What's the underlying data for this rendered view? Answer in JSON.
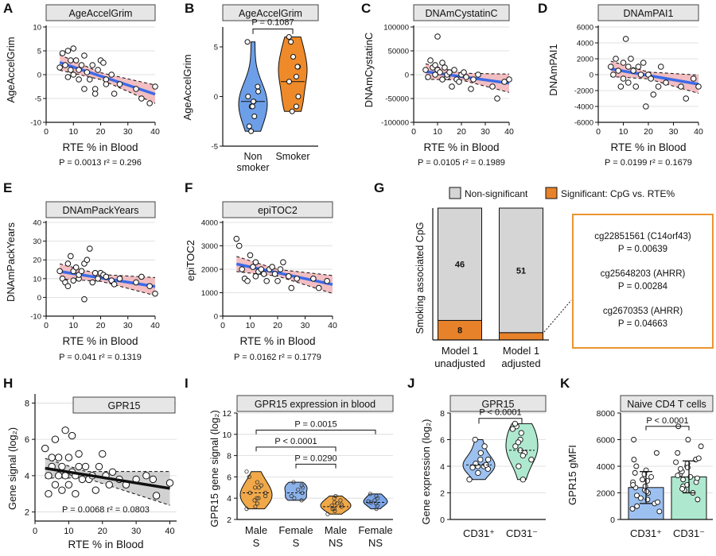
{
  "panels": [
    {
      "letter": "A",
      "title": "AgeAccelGrim",
      "ylabel": "AgeAccelGrim",
      "xlabel": "RTE % in Blood",
      "yticks": [
        "10",
        "5",
        "0",
        "-5",
        "-10"
      ],
      "xticks": [
        "0",
        "10",
        "20",
        "30",
        "40"
      ],
      "stat_p": "P = 0.0013",
      "stat_r": "r² = 0.296"
    },
    {
      "letter": "B",
      "title": "AgeAccelGrim",
      "ylabel": "AgeAccelGrim",
      "yticks": [
        "5",
        "0",
        "-5"
      ],
      "xticks": [
        "Non",
        "Smoker"
      ],
      "xticks2": [
        "smoker",
        ""
      ],
      "stat_p": "P = 0.1087"
    },
    {
      "letter": "C",
      "title": "DNAmCystatinC",
      "ylabel": "DNAmCystatinC",
      "xlabel": "RTE % in Blood",
      "yticks": [
        "100000",
        "50000",
        "0",
        "-50000",
        "-100000"
      ],
      "xticks": [
        "0",
        "10",
        "20",
        "30",
        "40"
      ],
      "stat_p": "P = 0.0105",
      "stat_r": "r² = 0.1989"
    },
    {
      "letter": "D",
      "title": "DNAmPAI1",
      "ylabel": "DNAmPAI1",
      "xlabel": "RTE % in Blood",
      "yticks": [
        "6000",
        "4000",
        "2000",
        "0",
        "-2000",
        "-4000",
        "-6000"
      ],
      "xticks": [
        "0",
        "10",
        "20",
        "30",
        "40"
      ],
      "stat_p": "P = 0.0199",
      "stat_r": "r² = 0.1679"
    },
    {
      "letter": "E",
      "title": "DNAmPackYears",
      "ylabel": "DNAmPackYears",
      "xlabel": "RTE % in Blood",
      "yticks": [
        "40",
        "30",
        "20",
        "10",
        "0",
        "-10"
      ],
      "xticks": [
        "0",
        "10",
        "20",
        "30",
        "40"
      ],
      "stat_p": "P = 0.041",
      "stat_r": "r² = 0.1319"
    },
    {
      "letter": "F",
      "title": "epiTOC2",
      "ylabel": "epiTOC2",
      "xlabel": "RTE % in Blood",
      "yticks": [
        "4000",
        "3000",
        "2000",
        "1000",
        "0"
      ],
      "xticks": [
        "0",
        "10",
        "20",
        "30",
        "40"
      ],
      "stat_p": "P = 0.0162",
      "stat_r": "r² = 0.1779"
    },
    {
      "letter": "G",
      "ylabel": "Smoking associated CpG",
      "legend_ns": "Non-significant",
      "legend_sig": "Significant: CpG vs. RTE%",
      "xticks": [
        "Model 1",
        "Model 1"
      ],
      "xticks2": [
        "unadjusted",
        "adjusted"
      ],
      "box_lines": [
        "cg22851561 (C14orf43)",
        "P = 0.00639",
        "cg25648203 (AHRR)",
        "P = 0.00284",
        "cg2670353 (AHRR)",
        "P = 0.04663"
      ]
    },
    {
      "letter": "H",
      "title": "GPR15",
      "ylabel": "Gene signal (log₂)",
      "xlabel": "RTE % in Blood",
      "yticks": [
        "8",
        "6",
        "4",
        "2"
      ],
      "xticks": [
        "0",
        "10",
        "20",
        "30",
        "40"
      ],
      "stat": "P = 0.0068    r² = 0.0803"
    },
    {
      "letter": "I",
      "title": "GPR15 expression in blood",
      "ylabel": "GPR15 gene signal (log₂)",
      "yticks": [
        "12",
        "10",
        "8",
        "6",
        "4",
        "2"
      ],
      "xticks": [
        "Male",
        "Female",
        "Male",
        "Female"
      ],
      "xticks2": [
        "S",
        "S",
        "NS",
        "NS"
      ],
      "stats": [
        "P = 0.0015",
        "P < 0.0001",
        "P = 0.0290"
      ]
    },
    {
      "letter": "J",
      "title": "GPR15",
      "ylabel": "Gene expression (log₂)",
      "yticks": [
        "8",
        "6",
        "4",
        "2",
        "0"
      ],
      "xticks": [
        "CD31⁺",
        "CD31⁻"
      ],
      "stat": "P < 0.0001"
    },
    {
      "letter": "K",
      "title": "Naive CD4 T cells",
      "ylabel": "GPR15 gMFI",
      "yticks": [
        "8000",
        "6000",
        "4000",
        "2000",
        "0"
      ],
      "xticks": [
        "CD31⁺",
        "CD31⁻"
      ],
      "stat": "P < 0.0001"
    }
  ],
  "colors": {
    "regression": "#3c6be8",
    "ci_fill": "#f1b3b7",
    "nonsmoker": "#6d9fe8",
    "smoker": "#ee8a2a",
    "orange": "#e8822a",
    "grey": "#d5d5d5",
    "box_border": "#e9962f",
    "male_s": "#f0a849",
    "female_s": "#8bb2ea",
    "male_ns": "#f0a849",
    "female_ns": "#7aa5e6",
    "cd31pos": "#9cc0f0",
    "cd31neg": "#aee9cf",
    "title_bg": "#e6e6e6"
  },
  "chart_data": [
    {
      "panel": "A",
      "type": "scatter",
      "xlim": [
        0,
        40
      ],
      "ylim": [
        -10,
        10
      ],
      "x": [
        5,
        6,
        7,
        8,
        8,
        9,
        9,
        10,
        10,
        11,
        12,
        12,
        13,
        14,
        14,
        15,
        16,
        17,
        18,
        18,
        19,
        20,
        21,
        22,
        22,
        24,
        25,
        27,
        33,
        35,
        38,
        40
      ],
      "y": [
        1.5,
        4.5,
        2,
        5,
        -0.5,
        3,
        1,
        5.5,
        0,
        3,
        1,
        -1,
        2,
        4,
        -3,
        0.5,
        -1,
        2,
        -3,
        -4,
        1,
        3,
        2.5,
        -1,
        -2,
        0,
        -4,
        -2,
        -3,
        -5,
        -6,
        -2.5
      ],
      "fit": {
        "slope": -0.19,
        "intercept": 3.5
      }
    },
    {
      "panel": "B",
      "type": "violin",
      "categories": [
        "Non smoker",
        "Smoker"
      ],
      "series": [
        {
          "values": [
            5.5,
            1,
            0,
            -0.5,
            -1,
            -1,
            -2,
            -3,
            -3.5,
            -0.5,
            0.5
          ]
        },
        {
          "values": [
            6,
            5.5,
            4,
            3,
            2,
            1.5,
            0,
            -1,
            -1.5,
            3
          ]
        }
      ],
      "medians": [
        -0.5,
        1.5
      ],
      "ylim": [
        -5,
        7
      ]
    },
    {
      "panel": "C",
      "type": "scatter",
      "xlim": [
        0,
        40
      ],
      "ylim": [
        -100000,
        100000
      ],
      "x": [
        5,
        6,
        7,
        8,
        9,
        9,
        10,
        10,
        11,
        12,
        12,
        13,
        14,
        14,
        15,
        16,
        17,
        18,
        19,
        20,
        21,
        22,
        24,
        25,
        27,
        33,
        35,
        38,
        40
      ],
      "y": [
        10000,
        -5000,
        30000,
        15000,
        20000,
        0,
        80000,
        10000,
        5000,
        -10000,
        25000,
        15000,
        -5000,
        0,
        5000,
        -25000,
        10000,
        -10000,
        -15000,
        0,
        5000,
        -5000,
        -30000,
        -10000,
        0,
        -25000,
        -50000,
        -15000,
        -10000
      ],
      "fit": {
        "slope": -700,
        "intercept": 10000
      }
    },
    {
      "panel": "D",
      "type": "scatter",
      "xlim": [
        0,
        40
      ],
      "ylim": [
        -6000,
        6000
      ],
      "x": [
        5,
        6,
        7,
        8,
        9,
        10,
        10,
        11,
        12,
        12,
        13,
        14,
        15,
        16,
        17,
        18,
        19,
        20,
        21,
        22,
        24,
        25,
        27,
        33,
        35,
        38,
        40
      ],
      "y": [
        1000,
        0,
        2000,
        500,
        -1500,
        1500,
        -500,
        4500,
        1000,
        -1000,
        2000,
        500,
        -1500,
        1000,
        0,
        1500,
        -4000,
        0,
        -500,
        -2500,
        -1500,
        1000,
        -1000,
        -1500,
        -3000,
        -500,
        -1500
      ],
      "fit": {
        "slope": -55,
        "intercept": 1000
      }
    },
    {
      "panel": "E",
      "type": "scatter",
      "xlim": [
        0,
        40
      ],
      "ylim": [
        -10,
        40
      ],
      "x": [
        5,
        6,
        7,
        8,
        8,
        9,
        10,
        10,
        11,
        12,
        12,
        13,
        14,
        14,
        15,
        16,
        17,
        18,
        19,
        20,
        21,
        22,
        24,
        25,
        27,
        33,
        35,
        38,
        40
      ],
      "y": [
        14,
        10,
        8,
        18,
        6,
        22,
        14,
        9,
        16,
        10,
        12,
        14,
        18,
        -1,
        20,
        26,
        8,
        13,
        10,
        13,
        12,
        11,
        9,
        7,
        10,
        8,
        11,
        6,
        2
      ],
      "fit": {
        "slope": -0.23,
        "intercept": 15
      }
    },
    {
      "panel": "F",
      "type": "scatter",
      "xlim": [
        0,
        40
      ],
      "ylim": [
        0,
        4000
      ],
      "x": [
        5,
        6,
        7,
        8,
        9,
        10,
        11,
        12,
        12,
        13,
        14,
        15,
        16,
        17,
        18,
        19,
        20,
        21,
        22,
        24,
        25,
        27,
        33,
        35,
        38
      ],
      "y": [
        3300,
        3000,
        2000,
        1600,
        1500,
        2600,
        2100,
        2300,
        1700,
        1900,
        2000,
        1800,
        1500,
        2000,
        2100,
        1800,
        1500,
        2000,
        2300,
        1700,
        1200,
        1600,
        1600,
        1200,
        1500
      ],
      "fit": {
        "slope": -25,
        "intercept": 2350
      }
    },
    {
      "panel": "G",
      "type": "bar",
      "categories": [
        "Model 1 unadjusted",
        "Model 1 adjusted"
      ],
      "series": [
        {
          "name": "Significant: CpG vs. RTE%",
          "values": [
            8,
            3
          ]
        },
        {
          "name": "Non-significant",
          "values": [
            46,
            51
          ]
        }
      ],
      "labels_ns": [
        "46",
        "51"
      ],
      "labels_sig": [
        "8",
        ""
      ]
    },
    {
      "panel": "H",
      "type": "scatter",
      "xlim": [
        0,
        40
      ],
      "ylim": [
        2,
        8
      ],
      "x": [
        3,
        4,
        4,
        5,
        5,
        6,
        6,
        7,
        7,
        8,
        8,
        9,
        9,
        10,
        10,
        11,
        11,
        12,
        12,
        13,
        13,
        14,
        15,
        16,
        17,
        18,
        19,
        20,
        21,
        22,
        23,
        25,
        27,
        30,
        33,
        35,
        36,
        40
      ],
      "y": [
        5.5,
        4,
        3,
        5,
        4.5,
        6,
        3.5,
        4,
        5,
        4.5,
        3.2,
        6.5,
        4,
        5,
        3.5,
        4.2,
        6.2,
        4,
        3,
        5.2,
        4.5,
        3.8,
        4.5,
        3.8,
        4,
        3.2,
        4.5,
        5.2,
        4,
        3.5,
        4.2,
        3.8,
        3.5,
        3.8,
        4,
        3.8,
        2.9,
        3.6
      ],
      "fit": {
        "slope": -0.03,
        "intercept": 4.5
      }
    },
    {
      "panel": "I",
      "type": "violin",
      "categories": [
        "Male S",
        "Female S",
        "Male NS",
        "Female NS"
      ],
      "series": [
        {
          "values": [
            3,
            3.5,
            4,
            4,
            4.5,
            5,
            5,
            5.5,
            6,
            6.5,
            4.5,
            3.8,
            4.2,
            5.2,
            3.2
          ]
        },
        {
          "values": [
            3.8,
            4,
            4.2,
            4.5,
            5,
            5.2,
            5.5,
            4.8
          ]
        },
        {
          "values": [
            2.5,
            2.8,
            3,
            3.2,
            3.4,
            3.6,
            3.8,
            4,
            4.2,
            3,
            3.3,
            3.5
          ]
        },
        {
          "values": [
            3,
            3.3,
            3.5,
            3.6,
            3.8,
            4,
            4.2,
            4.4,
            3.7
          ]
        }
      ],
      "medians": [
        4.5,
        4.5,
        3.2,
        3.6
      ],
      "ylim": [
        2,
        12
      ]
    },
    {
      "panel": "J",
      "type": "violin",
      "categories": [
        "CD31⁺",
        "CD31⁻"
      ],
      "series": [
        {
          "values": [
            3,
            3.5,
            3.8,
            4,
            4,
            4.2,
            4.5,
            4.5,
            5,
            5.5,
            6,
            4.1,
            3.9
          ]
        },
        {
          "values": [
            3,
            4,
            4.5,
            5,
            5.2,
            5.5,
            6,
            6.5,
            7,
            7.2,
            4.8,
            5.8,
            6.8
          ]
        }
      ],
      "medians": [
        4.1,
        5.2
      ],
      "ylim": [
        0,
        8
      ]
    },
    {
      "panel": "K",
      "type": "bar",
      "categories": [
        "CD31⁺",
        "CD31⁻"
      ],
      "values": [
        2400,
        3200
      ],
      "errors": [
        1200,
        1200
      ],
      "ylim": [
        0,
        8000
      ],
      "points": [
        [
          800,
          1000,
          1200,
          1500,
          1800,
          2000,
          2200,
          2400,
          2500,
          2800,
          3000,
          3200,
          3500,
          4000,
          4500,
          5000,
          6000,
          600,
          1600,
          2600,
          3400,
          1300,
          2100,
          2900,
          3700
        ],
        [
          1500,
          2000,
          2200,
          2500,
          2800,
          3000,
          3200,
          3400,
          3600,
          3800,
          4000,
          4200,
          4500,
          5000,
          5500,
          6000,
          7000,
          2600,
          3100,
          3300,
          4300,
          2300,
          3900,
          4600
        ]
      ]
    }
  ]
}
